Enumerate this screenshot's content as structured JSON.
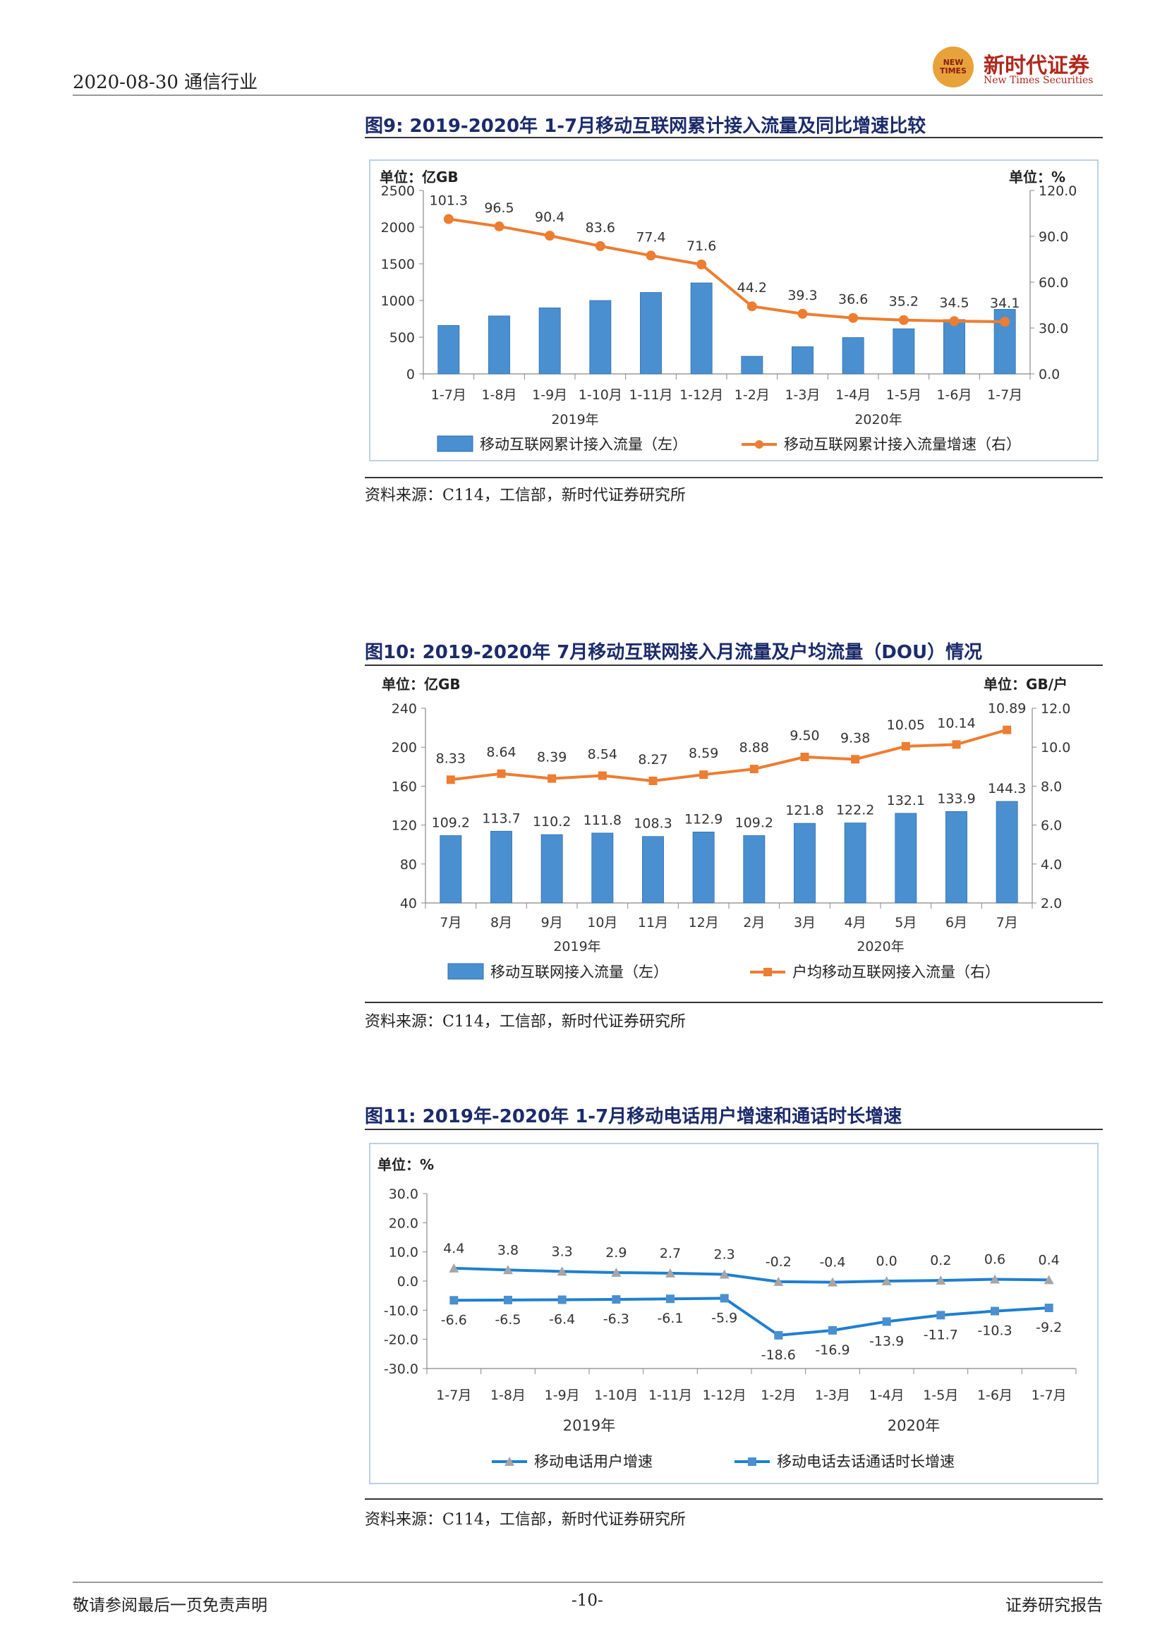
{
  "header": {
    "date_industry": "2020-08-30  通信行业",
    "logo_cn": "新时代证券",
    "logo_en": "New Times Securities",
    "logo_badge": "NEW TIMES"
  },
  "figures": [
    {
      "title": "图9:   2019-2020年 1-7月移动互联网累计接入流量及同比增速比较",
      "source": "资料来源：C114，工信部，新时代证券研究所"
    },
    {
      "title": "图10:   2019-2020年 7月移动互联网接入月流量及户均流量（DOU）情况",
      "source": "资料来源：C114，工信部，新时代证券研究所"
    },
    {
      "title": "图11:   2019年-2020年 1-7月移动电话用户增速和通话时长增速",
      "source": "资料来源：C114，工信部，新时代证券研究所"
    }
  ],
  "footer": {
    "left": "敬请参阅最后一页免责声明",
    "page": "-10-",
    "right": "证券研究报告"
  },
  "chart_data": [
    {
      "type": "bar+line",
      "left_unit": "单位：亿GB",
      "right_unit": "单位：%",
      "categories": [
        "1-7月",
        "1-8月",
        "1-9月",
        "1-10月",
        "1-11月",
        "1-12月",
        "1-2月",
        "1-3月",
        "1-4月",
        "1-5月",
        "1-6月",
        "1-7月"
      ],
      "year_labels": [
        "2019年",
        "2020年"
      ],
      "bar_series": {
        "name": "移动互联网累计接入流量（左）",
        "values": [
          660,
          790,
          900,
          1000,
          1110,
          1240,
          240,
          370,
          495,
          615,
          740,
          880
        ],
        "color": "#4a8fd0"
      },
      "line_series": {
        "name": "移动互联网累计接入流量增速（右）",
        "values": [
          101.3,
          96.5,
          90.4,
          83.6,
          77.4,
          71.6,
          44.2,
          39.3,
          36.6,
          35.2,
          34.5,
          34.1
        ],
        "labels": [
          "101.3",
          "96.5",
          "90.4",
          "83.6",
          "77.4",
          "71.6",
          "44.2",
          "39.3",
          "36.6",
          "35.2",
          "34.5",
          "34.1"
        ],
        "color": "#ed7d31"
      },
      "ylim_left": [
        0,
        2500
      ],
      "yticks_left": [
        "0",
        "500",
        "1000",
        "1500",
        "2000",
        "2500"
      ],
      "ylim_right": [
        0,
        120
      ],
      "yticks_right": [
        "0.0",
        "30.0",
        "60.0",
        "90.0",
        "120.0"
      ]
    },
    {
      "type": "bar+line",
      "left_unit": "单位：亿GB",
      "right_unit": "单位：GB/户",
      "categories": [
        "7月",
        "8月",
        "9月",
        "10月",
        "11月",
        "12月",
        "2月",
        "3月",
        "4月",
        "5月",
        "6月",
        "7月"
      ],
      "year_labels": [
        "2019年",
        "2020年"
      ],
      "bar_series": {
        "name": "移动互联网接入流量（左）",
        "values": [
          109.2,
          113.7,
          110.2,
          111.8,
          108.3,
          112.9,
          109.2,
          121.8,
          122.2,
          132.1,
          133.9,
          144.3
        ],
        "labels": [
          "109.2",
          "113.7",
          "110.2",
          "111.8",
          "108.3",
          "112.9",
          "109.2",
          "121.8",
          "122.2",
          "132.1",
          "133.9",
          "144.3"
        ],
        "color": "#4a8fd0"
      },
      "line_series": {
        "name": "户均移动互联网接入流量（右）",
        "values": [
          8.33,
          8.64,
          8.39,
          8.54,
          8.27,
          8.59,
          8.88,
          9.5,
          9.38,
          10.05,
          10.14,
          10.89
        ],
        "labels": [
          "8.33",
          "8.64",
          "8.39",
          "8.54",
          "8.27",
          "8.59",
          "8.88",
          "9.50",
          "9.38",
          "10.05",
          "10.14",
          "10.89"
        ],
        "color": "#ed7d31"
      },
      "ylim_left": [
        40,
        240
      ],
      "yticks_left": [
        "40",
        "80",
        "120",
        "160",
        "200",
        "240"
      ],
      "ylim_right": [
        2,
        12
      ],
      "yticks_right": [
        "2.0",
        "4.0",
        "6.0",
        "8.0",
        "10.0",
        "12.0"
      ]
    },
    {
      "type": "line",
      "left_unit": "单位：%",
      "categories": [
        "1-7月",
        "1-8月",
        "1-9月",
        "1-10月",
        "1-11月",
        "1-12月",
        "1-2月",
        "1-3月",
        "1-4月",
        "1-5月",
        "1-6月",
        "1-7月"
      ],
      "year_labels": [
        "2019年",
        "2020年"
      ],
      "series": [
        {
          "name": "移动电话用户增速",
          "values": [
            4.4,
            3.8,
            3.3,
            2.9,
            2.7,
            2.3,
            -0.2,
            -0.4,
            0.0,
            0.2,
            0.6,
            0.4
          ],
          "labels": [
            "4.4",
            "3.8",
            "3.3",
            "2.9",
            "2.7",
            "2.3",
            "-0.2",
            "-0.4",
            "0.0",
            "0.2",
            "0.6",
            "0.4"
          ],
          "color": "#1f7fd0",
          "marker_color": "#a6a6a6"
        },
        {
          "name": "移动电话去话通话时长增速",
          "values": [
            -6.6,
            -6.5,
            -6.4,
            -6.3,
            -6.1,
            -5.9,
            -18.6,
            -16.9,
            -13.9,
            -11.7,
            -10.3,
            -9.2
          ],
          "labels": [
            "-6.6",
            "-6.5",
            "-6.4",
            "-6.3",
            "-6.1",
            "-5.9",
            "-18.6",
            "-16.9",
            "-13.9",
            "-11.7",
            "-10.3",
            "-9.2"
          ],
          "color": "#1f7fd0",
          "marker_color": "#4a8fd0"
        }
      ],
      "ylim": [
        -30,
        30
      ],
      "yticks": [
        "-30.0",
        "-20.0",
        "-10.0",
        "0.0",
        "10.0",
        "20.0",
        "30.0"
      ]
    }
  ]
}
